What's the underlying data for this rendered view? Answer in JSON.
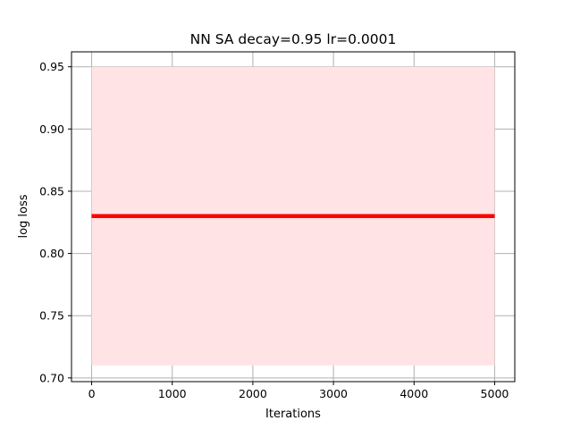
{
  "chart_data": {
    "type": "line",
    "title": "NN SA decay=0.95 lr=0.0001",
    "xlabel": "Iterations",
    "ylabel": "log loss",
    "xlim": [
      -250,
      5250
    ],
    "ylim": [
      0.697,
      0.962
    ],
    "xticks": [
      0,
      1000,
      2000,
      3000,
      4000,
      5000
    ],
    "xtick_labels": [
      "0",
      "1000",
      "2000",
      "3000",
      "4000",
      "5000"
    ],
    "yticks": [
      0.7,
      0.75,
      0.8,
      0.85,
      0.9,
      0.95
    ],
    "ytick_labels": [
      "0.70",
      "0.75",
      "0.80",
      "0.85",
      "0.90",
      "0.95"
    ],
    "grid": true,
    "series": [
      {
        "color": "#ff0000",
        "x": [
          0,
          5000
        ],
        "y": [
          0.83,
          0.83
        ],
        "band": {
          "lower": [
            0.71,
            0.71
          ],
          "upper": [
            0.95,
            0.95
          ],
          "color": "#ffe3e5"
        }
      }
    ]
  }
}
